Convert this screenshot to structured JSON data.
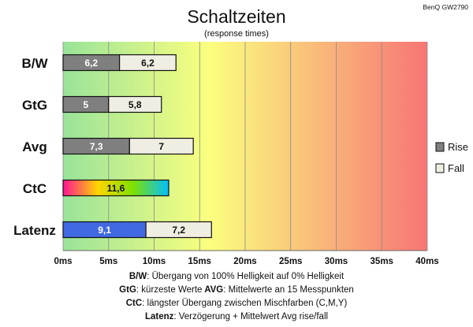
{
  "chart_data": {
    "type": "bar",
    "title": "Schaltzeiten",
    "subtitle": "(response times)",
    "model": "BenQ GW2790",
    "categories": [
      "B/W",
      "GtG",
      "Avg",
      "CtC",
      "Latenz"
    ],
    "series": [
      {
        "name": "Rise",
        "values": [
          6.2,
          5,
          7.3,
          null,
          9.1
        ]
      },
      {
        "name": "Fall",
        "values": [
          6.2,
          5.8,
          7,
          null,
          7.2
        ]
      }
    ],
    "ctc_value": 11.6,
    "value_labels": {
      "rise": [
        "6,2",
        "5",
        "7,3",
        "",
        "9,1"
      ],
      "fall": [
        "6,2",
        "5,8",
        "7",
        "",
        "7,2"
      ],
      "ctc": "11,6"
    },
    "xlim": [
      0,
      40
    ],
    "x_ticks": [
      0,
      5,
      10,
      15,
      20,
      25,
      30,
      35,
      40
    ],
    "x_tick_labels": [
      "0ms",
      "5ms",
      "10ms",
      "15ms",
      "20ms",
      "25ms",
      "30ms",
      "35ms",
      "40ms"
    ],
    "grid": true,
    "legend": {
      "position": "right",
      "items": [
        "Rise",
        "Fall"
      ]
    },
    "colors": {
      "rise": "#7f7f7f",
      "fall": "#f0ede2",
      "latenz_rise": "#4169e1",
      "bg_green": "#98e39a",
      "bg_yellow": "#fbff7f",
      "bg_red": "#f77575"
    },
    "notes": [
      {
        "key": "B/W",
        "text": ":  Übergang von 100% Helligkeit auf 0% Helligkeit"
      },
      {
        "key": "GtG",
        "text": ": kürzeste  Werte",
        "key2": "AVG",
        "text2": ": Mittelwerte  an 15 Messpunkten"
      },
      {
        "key": "CtC",
        "text": ": längster Übergang  zwischen Mischfarben  (C,M,Y)"
      },
      {
        "key": "Latenz",
        "text": ": Verzögerung  + Mittelwert  Avg rise/fall"
      }
    ]
  }
}
